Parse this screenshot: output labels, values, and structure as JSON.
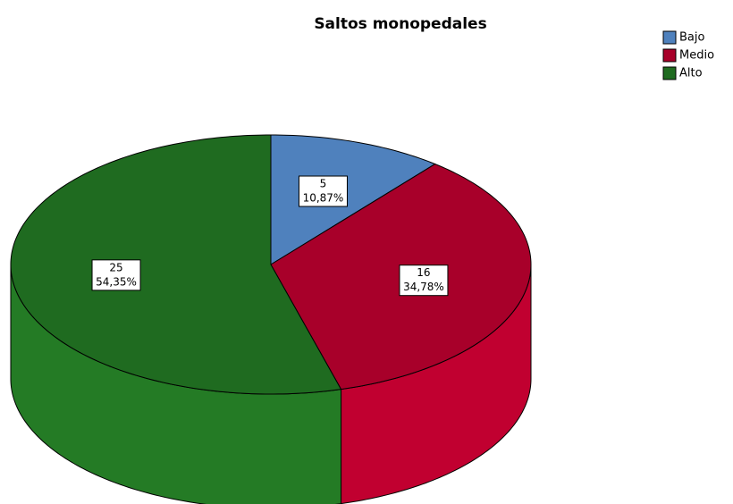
{
  "chart_data": {
    "type": "pie",
    "title": "Saltos monopedales",
    "categories": [
      "Bajo",
      "Medio",
      "Alto"
    ],
    "values": [
      10.87,
      34.78,
      54.35
    ],
    "value_labels": [
      "10,87%",
      "34,78%",
      "54,35%"
    ],
    "counts": [
      5,
      16,
      25
    ],
    "colors": [
      "#4f81bd",
      "#a8002a",
      "#1f6b20"
    ],
    "legend": "top-right"
  }
}
